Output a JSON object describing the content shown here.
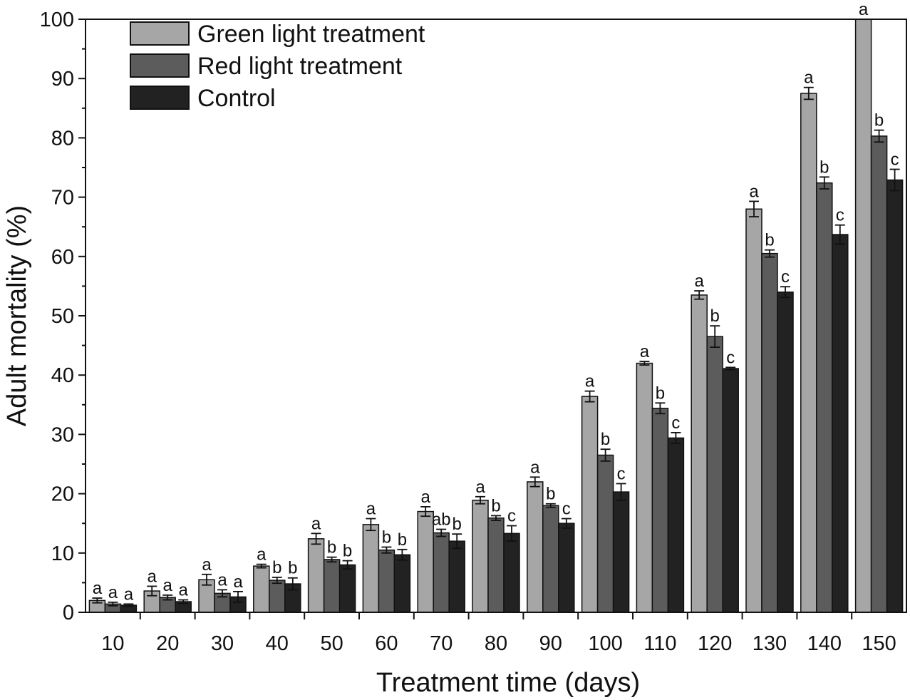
{
  "chart_data": {
    "type": "bar",
    "title": "",
    "xlabel": "Treatment time (days)",
    "ylabel": "Adult mortality (%)",
    "ylim": [
      0,
      100
    ],
    "yticks": [
      0,
      10,
      20,
      30,
      40,
      50,
      60,
      70,
      80,
      90,
      100
    ],
    "categories": [
      "10",
      "20",
      "30",
      "40",
      "50",
      "60",
      "70",
      "80",
      "90",
      "100",
      "110",
      "120",
      "130",
      "140",
      "150"
    ],
    "legend_position": "top-left",
    "grid": false,
    "series": [
      {
        "name": "Green light treatment",
        "color": "#a6a6a6",
        "values": [
          2.0,
          3.6,
          5.5,
          7.8,
          12.4,
          14.8,
          17.0,
          18.9,
          22.0,
          36.4,
          42.0,
          53.5,
          68.0,
          87.5,
          100.0
        ],
        "errors": [
          0.4,
          0.8,
          0.9,
          0.3,
          0.9,
          1.0,
          0.8,
          0.6,
          0.8,
          0.9,
          0.3,
          0.7,
          1.3,
          1.0,
          0.0
        ],
        "labels": [
          "a",
          "a",
          "a",
          "a",
          "a",
          "a",
          "a",
          "a",
          "a",
          "a",
          "a",
          "a",
          "a",
          "a",
          "a"
        ]
      },
      {
        "name": "Red light treatment",
        "color": "#5c5c5c",
        "values": [
          1.4,
          2.5,
          3.2,
          5.4,
          8.9,
          10.5,
          13.4,
          15.9,
          18.0,
          26.5,
          34.4,
          46.5,
          60.5,
          72.4,
          80.3
        ],
        "errors": [
          0.3,
          0.4,
          0.6,
          0.5,
          0.4,
          0.5,
          0.6,
          0.4,
          0.3,
          1.0,
          0.9,
          1.8,
          0.6,
          1.0,
          1.0
        ],
        "labels": [
          "a",
          "a",
          "a",
          "b",
          "b",
          "b",
          "ab",
          "b",
          "b",
          "b",
          "b",
          "b",
          "b",
          "b",
          "b"
        ]
      },
      {
        "name": "Control",
        "color": "#222222",
        "values": [
          1.2,
          1.8,
          2.6,
          4.8,
          8.0,
          9.7,
          12.0,
          13.3,
          15.0,
          20.3,
          29.4,
          41.1,
          54.0,
          63.7,
          72.9
        ],
        "errors": [
          0.2,
          0.3,
          0.9,
          1.0,
          0.7,
          0.9,
          1.2,
          1.3,
          0.8,
          1.4,
          0.9,
          0.2,
          0.9,
          1.6,
          1.8
        ],
        "labels": [
          "a",
          "a",
          "a",
          "b",
          "b",
          "b",
          "b",
          "c",
          "c",
          "c",
          "c",
          "c",
          "c",
          "c",
          "c"
        ]
      }
    ]
  }
}
